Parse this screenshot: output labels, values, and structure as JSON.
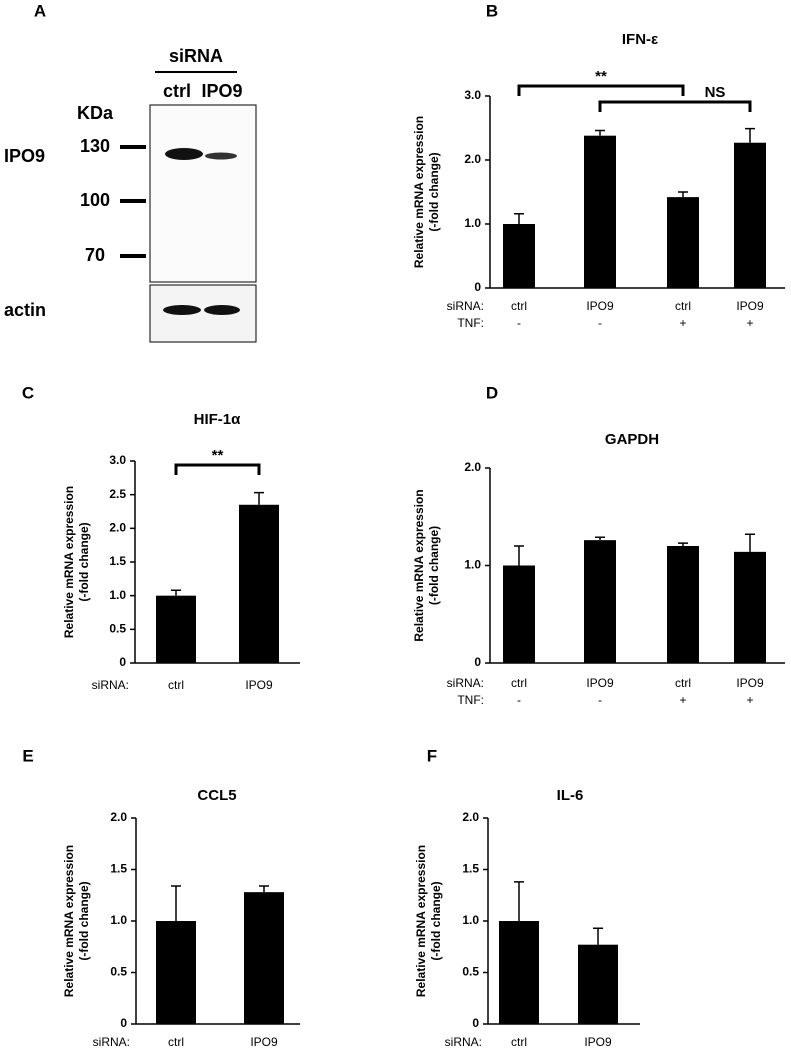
{
  "blot": {
    "label": "A",
    "group": "siRNA",
    "lanes": [
      "ctrl",
      "IPO9"
    ],
    "unit": "KDa",
    "markers": [
      "130",
      "100",
      "70"
    ],
    "protein": "IPO9",
    "control": "actin"
  },
  "chart_data": [
    {
      "type": "bar",
      "label": "B",
      "title": "IFN-ε",
      "ylabel": [
        "Relative mRNA expression",
        "(-fold change)"
      ],
      "row_labels": [
        "siRNA:",
        "TNF:"
      ],
      "categories": [
        "ctrl",
        "IPO9",
        "ctrl",
        "IPO9"
      ],
      "tnf": [
        "-",
        "-",
        "+",
        "+"
      ],
      "values": [
        1.0,
        2.38,
        1.42,
        2.27
      ],
      "errors": [
        0.16,
        0.08,
        0.08,
        0.22
      ],
      "color": "#000000",
      "ylim": [
        0,
        3
      ],
      "yticks": [
        0,
        {
          "value": 1,
          "label": "1.0"
        },
        {
          "value": 2,
          "label": "2.0"
        },
        {
          "value": 3,
          "label": "3.0"
        }
      ],
      "annotations": [
        "**",
        "NS"
      ]
    },
    {
      "type": "bar",
      "label": "C",
      "title": "HIF-1α",
      "ylabel": [
        "Relative mRNA expression",
        "(-fold change)"
      ],
      "row_labels": [
        "siRNA:"
      ],
      "categories": [
        "ctrl",
        "IPO9"
      ],
      "values": [
        1.0,
        2.35
      ],
      "errors": [
        0.08,
        0.18
      ],
      "color": "#000000",
      "ylim": [
        0,
        3
      ],
      "yticks": [
        0,
        0.5,
        {
          "value": 1,
          "label": "1.0"
        },
        1.5,
        {
          "value": 2,
          "label": "2.0"
        },
        2.5,
        {
          "value": 3,
          "label": "3.0"
        }
      ],
      "annotations": [
        "**"
      ]
    },
    {
      "type": "bar",
      "label": "D",
      "title": "GAPDH",
      "ylabel": [
        "Relative mRNA expression",
        "(-fold change)"
      ],
      "row_labels": [
        "siRNA:",
        "TNF:"
      ],
      "categories": [
        "ctrl",
        "IPO9",
        "ctrl",
        "IPO9"
      ],
      "tnf": [
        "-",
        "-",
        "+",
        "+"
      ],
      "values": [
        1.0,
        1.26,
        1.2,
        1.14
      ],
      "errors": [
        0.2,
        0.03,
        0.03,
        0.18
      ],
      "color": "#000000",
      "ylim": [
        0,
        2
      ],
      "yticks": [
        0,
        {
          "value": 1,
          "label": "1.0"
        },
        {
          "value": 2,
          "label": "2.0"
        }
      ]
    },
    {
      "type": "bar",
      "label": "E",
      "title": "CCL5",
      "ylabel": [
        "Relative mRNA expression",
        "(-fold change)"
      ],
      "row_labels": [
        "siRNA:"
      ],
      "categories": [
        "ctrl",
        "IPO9"
      ],
      "values": [
        1.0,
        1.28
      ],
      "errors": [
        0.34,
        0.06
      ],
      "color": "#000000",
      "ylim": [
        0,
        2
      ],
      "yticks": [
        0,
        0.5,
        {
          "value": 1,
          "label": "1.0"
        },
        1.5,
        {
          "value": 2,
          "label": "2.0"
        }
      ]
    },
    {
      "type": "bar",
      "label": "F",
      "title": "IL-6",
      "ylabel": [
        "Relative mRNA expression",
        "(-fold change)"
      ],
      "row_labels": [
        "siRNA:"
      ],
      "categories": [
        "ctrl",
        "IPO9"
      ],
      "values": [
        1.0,
        0.77
      ],
      "errors": [
        0.38,
        0.16
      ],
      "color": "#000000",
      "ylim": [
        0,
        2
      ],
      "yticks": [
        0,
        0.5,
        {
          "value": 1,
          "label": "1.0"
        },
        1.5,
        {
          "value": 2,
          "label": "2.0"
        }
      ]
    }
  ]
}
